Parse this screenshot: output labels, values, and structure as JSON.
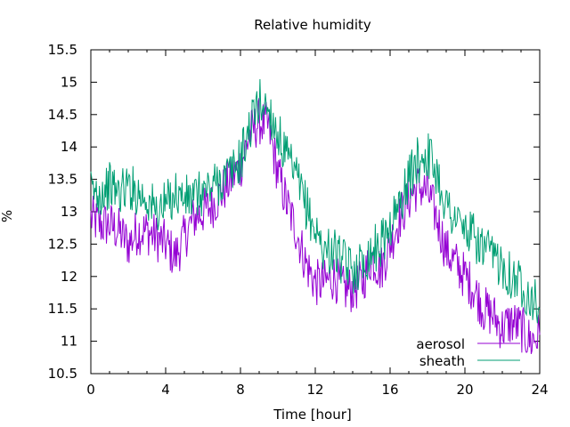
{
  "chart_data": {
    "type": "line",
    "title": "Relative humidity",
    "xlabel": "Time [hour]",
    "ylabel": "%",
    "xlim": [
      0,
      24
    ],
    "ylim": [
      10.5,
      15.5
    ],
    "xticks": [
      0,
      4,
      8,
      12,
      16,
      20,
      24
    ],
    "yticks": [
      10.5,
      11,
      11.5,
      12,
      12.5,
      13,
      13.5,
      14,
      14.5,
      15,
      15.5
    ],
    "grid": false,
    "legend_position": "bottom-right",
    "series": [
      {
        "name": "aerosol",
        "color": "#9400d3",
        "x": [
          0,
          0.5,
          1,
          1.5,
          2,
          2.5,
          3,
          3.5,
          4,
          4.5,
          5,
          5.5,
          6,
          6.5,
          7,
          7.5,
          8,
          8.5,
          9,
          9.5,
          10,
          10.5,
          11,
          11.5,
          12,
          12.5,
          13,
          13.5,
          14,
          14.5,
          15,
          15.5,
          16,
          16.5,
          17,
          17.5,
          18,
          18.5,
          19,
          19.5,
          20,
          20.5,
          21,
          21.5,
          22,
          22.5,
          23,
          23.5,
          24
        ],
        "y": [
          12.9,
          12.8,
          12.8,
          12.7,
          12.5,
          12.7,
          12.7,
          12.6,
          12.5,
          12.3,
          12.6,
          12.9,
          13.0,
          13.1,
          13.3,
          13.5,
          13.7,
          14.2,
          14.4,
          14.3,
          13.6,
          13.1,
          12.7,
          12.2,
          11.9,
          11.9,
          12.0,
          11.8,
          11.8,
          11.9,
          12.3,
          12.1,
          12.5,
          12.9,
          13.2,
          13.4,
          13.3,
          12.9,
          12.4,
          12.2,
          12.0,
          11.8,
          11.5,
          11.4,
          11.2,
          11.3,
          11.2,
          11.0,
          11.1
        ]
      },
      {
        "name": "sheath",
        "color": "#009e73",
        "x": [
          0,
          0.5,
          1,
          1.5,
          2,
          2.5,
          3,
          3.5,
          4,
          4.5,
          5,
          5.5,
          6,
          6.5,
          7,
          7.5,
          8,
          8.5,
          9,
          9.5,
          10,
          10.5,
          11,
          11.5,
          12,
          12.5,
          13,
          13.5,
          14,
          14.5,
          15,
          15.5,
          16,
          16.5,
          17,
          17.5,
          18,
          18.5,
          19,
          19.5,
          20,
          20.5,
          21,
          21.5,
          22,
          22.5,
          23,
          23.5,
          24
        ],
        "y": [
          13.3,
          13.3,
          13.4,
          13.3,
          13.4,
          13.3,
          13.2,
          13.0,
          13.1,
          13.3,
          13.2,
          13.2,
          13.3,
          13.4,
          13.5,
          13.6,
          13.8,
          14.3,
          14.7,
          14.6,
          14.2,
          13.8,
          13.5,
          13.1,
          12.7,
          12.4,
          12.4,
          12.2,
          12.1,
          12.2,
          12.4,
          12.5,
          12.8,
          13.1,
          13.5,
          13.8,
          13.9,
          13.6,
          13.1,
          12.9,
          12.7,
          12.6,
          12.4,
          12.3,
          12.2,
          12.0,
          11.9,
          11.7,
          11.5
        ]
      }
    ]
  }
}
